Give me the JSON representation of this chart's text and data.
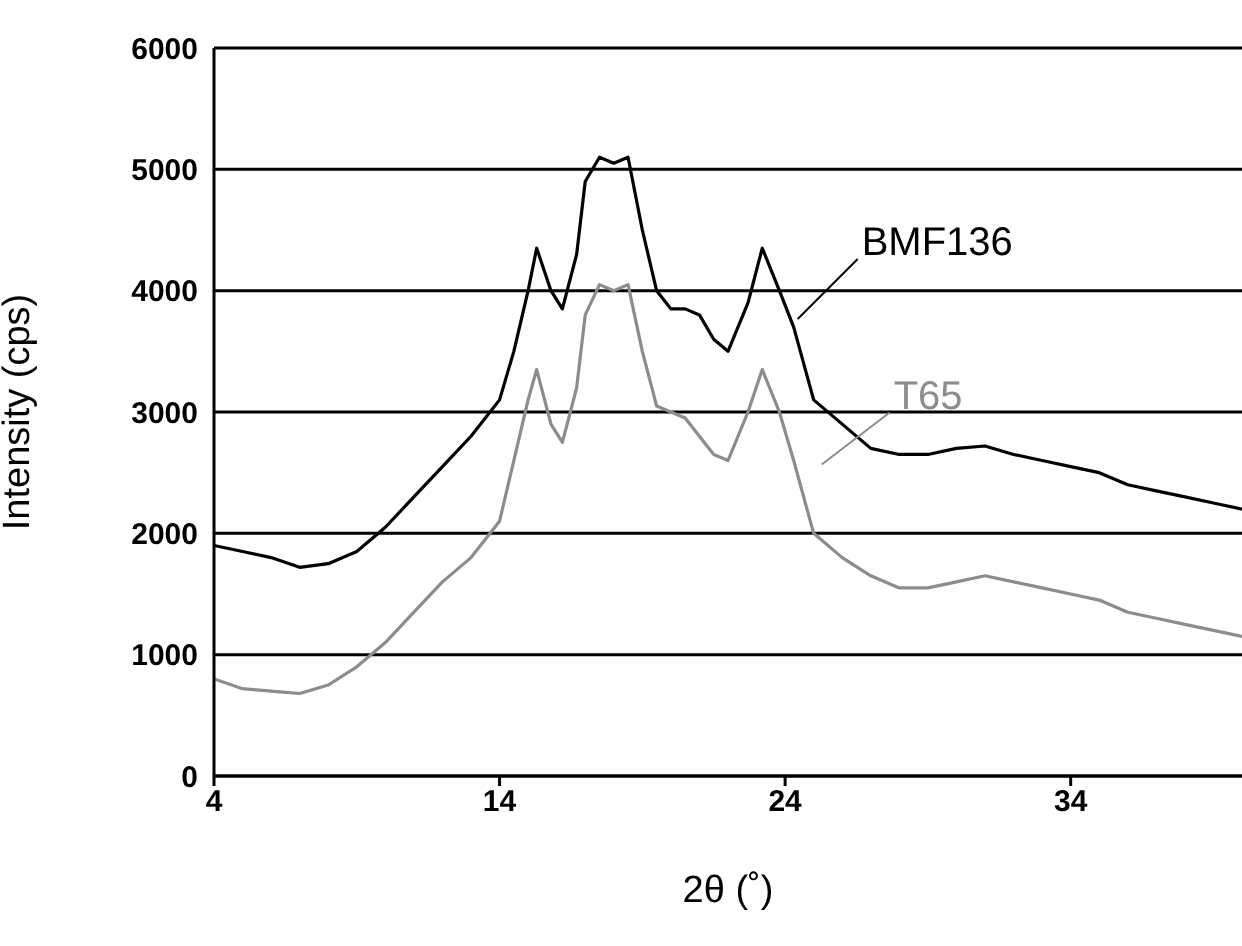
{
  "chart_data": {
    "type": "line",
    "xlabel": "2θ (˚)",
    "ylabel": "Intensity (cps)",
    "xlim": [
      4,
      40
    ],
    "xticks": [
      4,
      14,
      24,
      34
    ],
    "ylim": [
      0,
      6000
    ],
    "yticks": [
      0,
      1000,
      2000,
      3000,
      4000,
      5000,
      6000
    ],
    "grid": "y",
    "legend": false,
    "marker": "none",
    "line_style": "solid",
    "x": [
      4,
      5,
      6,
      7,
      8,
      9,
      10,
      11,
      12,
      13,
      14,
      14.5,
      15,
      15.3,
      15.8,
      16.2,
      16.7,
      17,
      17.5,
      18,
      18.5,
      19,
      19.5,
      20,
      20.5,
      21,
      21.5,
      22,
      22.7,
      23.2,
      23.8,
      24.3,
      25,
      26,
      27,
      28,
      29,
      30,
      31,
      32,
      33,
      34,
      35,
      36,
      37,
      38,
      39,
      40
    ],
    "series": [
      {
        "name": "BMF136",
        "color": "#000000",
        "values": [
          1900,
          1850,
          1800,
          1720,
          1750,
          1850,
          2050,
          2300,
          2550,
          2800,
          3100,
          3500,
          4000,
          4350,
          4000,
          3850,
          4300,
          4900,
          5100,
          5050,
          5100,
          4500,
          4000,
          3850,
          3850,
          3800,
          3600,
          3500,
          3900,
          4350,
          4000,
          3700,
          3100,
          2900,
          2700,
          2650,
          2650,
          2700,
          2720,
          2650,
          2600,
          2550,
          2500,
          2400,
          2350,
          2300,
          2250,
          2200
        ]
      },
      {
        "name": "T65",
        "color": "#8c8c8c",
        "values": [
          800,
          720,
          700,
          680,
          750,
          900,
          1100,
          1350,
          1600,
          1800,
          2100,
          2600,
          3100,
          3350,
          2900,
          2750,
          3200,
          3800,
          4050,
          4000,
          4050,
          3500,
          3050,
          3000,
          2950,
          2800,
          2650,
          2600,
          3000,
          3350,
          3000,
          2600,
          2000,
          1800,
          1650,
          1550,
          1550,
          1600,
          1650,
          1600,
          1550,
          1500,
          1450,
          1350,
          1300,
          1250,
          1200,
          1150
        ]
      }
    ]
  }
}
